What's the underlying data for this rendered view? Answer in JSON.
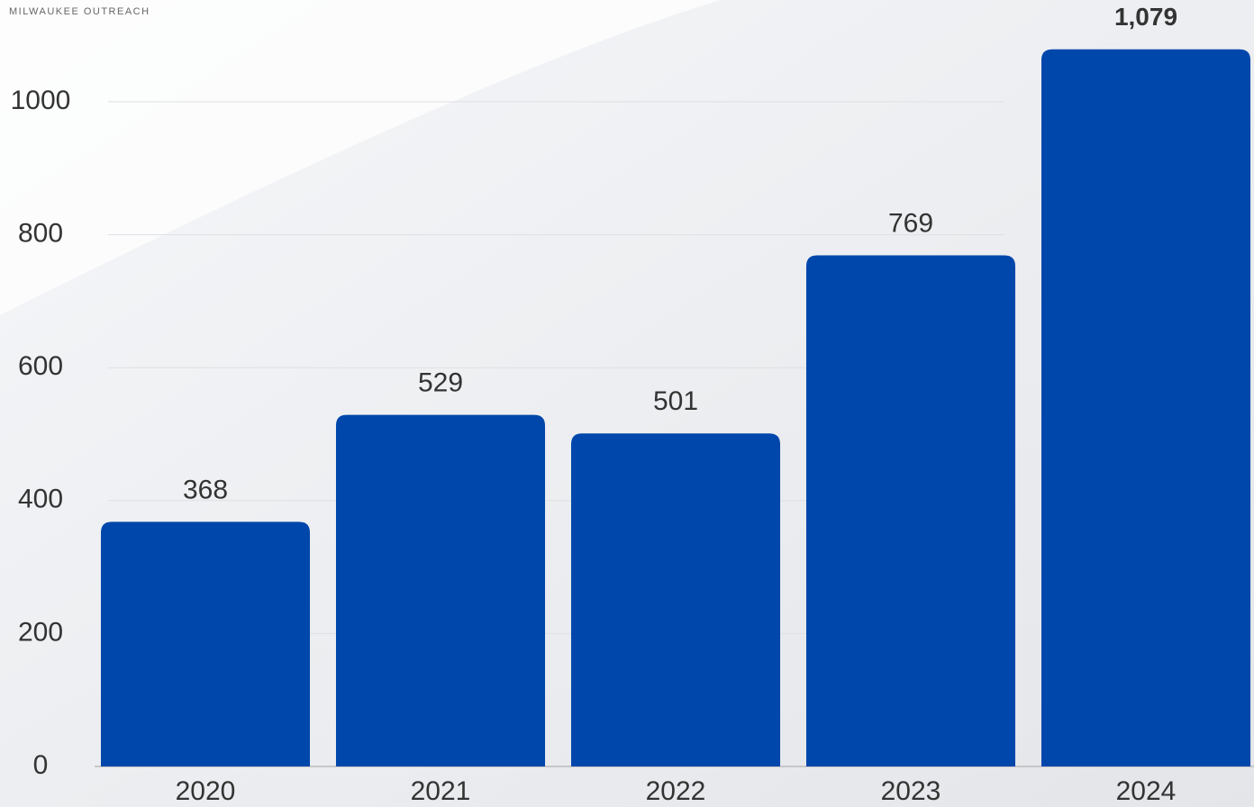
{
  "chart_data": {
    "type": "bar",
    "logo_text": "MILWAUKEE OUTREACH",
    "categories": [
      "2020",
      "2021",
      "2022",
      "2023",
      "2024"
    ],
    "values": [
      368,
      529,
      501,
      769,
      1079
    ],
    "value_labels": [
      "368",
      "529",
      "501",
      "769",
      "1,079"
    ],
    "color": "#0047ab",
    "ylim": [
      0,
      1100
    ],
    "yticks": [
      0,
      200,
      400,
      600,
      800,
      1000
    ],
    "grid": true
  }
}
